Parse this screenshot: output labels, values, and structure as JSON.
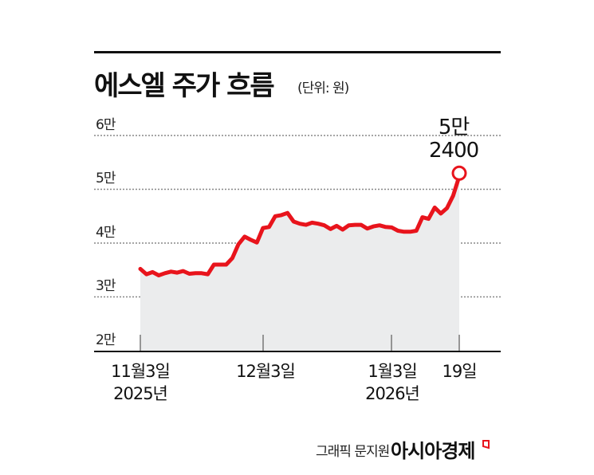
{
  "header": {
    "title": "에스엘 주가 흐름",
    "unit": "(단위: 원)"
  },
  "y_axis": {
    "ticks": [
      "6만",
      "5만",
      "4만",
      "3만",
      "2만"
    ]
  },
  "x_axis": {
    "ticks": [
      {
        "line1": "11월3일",
        "line2": "2025년"
      },
      {
        "line1": "12월3일",
        "line2": ""
      },
      {
        "line1": "1월3일",
        "line2": "2026년"
      },
      {
        "line1": "19일",
        "line2": ""
      }
    ]
  },
  "annotation": {
    "line1": "5만",
    "line2": "2400"
  },
  "footer": {
    "credit": "그래픽 문지원",
    "brand": "아시아경제"
  },
  "colors": {
    "line": "#e8141c",
    "fill": "#ebeced",
    "grid": "#888888",
    "axis": "#111111"
  },
  "chart_data": {
    "type": "area",
    "title": "에스엘 주가 흐름",
    "subtitle": "(단위: 원)",
    "xlabel": "",
    "ylabel": "",
    "ylim": [
      20000,
      60000
    ],
    "y_ticks": [
      20000,
      30000,
      40000,
      50000,
      60000
    ],
    "y_tick_labels": [
      "2만",
      "3만",
      "4만",
      "5만",
      "6만"
    ],
    "x_tick_labels": [
      "11월3일 2025년",
      "12월3일",
      "1월3일 2026년",
      "19일"
    ],
    "grid": true,
    "legend": "none",
    "x": [
      "2025-11-03",
      "2025-11-04",
      "2025-11-05",
      "2025-11-06",
      "2025-11-07",
      "2025-11-10",
      "2025-11-11",
      "2025-11-12",
      "2025-11-13",
      "2025-11-14",
      "2025-11-17",
      "2025-11-18",
      "2025-11-19",
      "2025-11-20",
      "2025-11-21",
      "2025-11-24",
      "2025-11-25",
      "2025-11-26",
      "2025-11-27",
      "2025-11-28",
      "2025-12-01",
      "2025-12-02",
      "2025-12-03",
      "2025-12-04",
      "2025-12-05",
      "2025-12-08",
      "2025-12-09",
      "2025-12-10",
      "2025-12-11",
      "2025-12-12",
      "2025-12-15",
      "2025-12-16",
      "2025-12-17",
      "2025-12-18",
      "2025-12-19",
      "2025-12-22",
      "2025-12-23",
      "2025-12-24",
      "2025-12-26",
      "2025-12-29",
      "2025-12-30",
      "2026-01-02",
      "2026-01-05",
      "2026-01-06",
      "2026-01-07",
      "2026-01-08",
      "2026-01-09",
      "2026-01-12",
      "2026-01-13",
      "2026-01-14",
      "2026-01-15",
      "2026-01-16",
      "2026-01-19"
    ],
    "series": [
      {
        "name": "에스엘 주가",
        "values": [
          35200,
          34200,
          34600,
          34000,
          34400,
          34700,
          34500,
          34800,
          34300,
          34400,
          34400,
          34200,
          36000,
          36000,
          36000,
          37200,
          39800,
          41200,
          40600,
          40100,
          42800,
          43000,
          45000,
          45200,
          45600,
          44000,
          43600,
          43400,
          43800,
          43600,
          43300,
          42600,
          43200,
          42500,
          43300,
          43400,
          43400,
          42700,
          43100,
          43300,
          43000,
          42900,
          42300,
          42100,
          42100,
          42300,
          44800,
          44500,
          46600,
          45500,
          46500,
          48800,
          52400
        ]
      }
    ],
    "annotations": [
      {
        "x": "2026-01-19",
        "value": 52400,
        "label": "5만 2400"
      }
    ]
  }
}
